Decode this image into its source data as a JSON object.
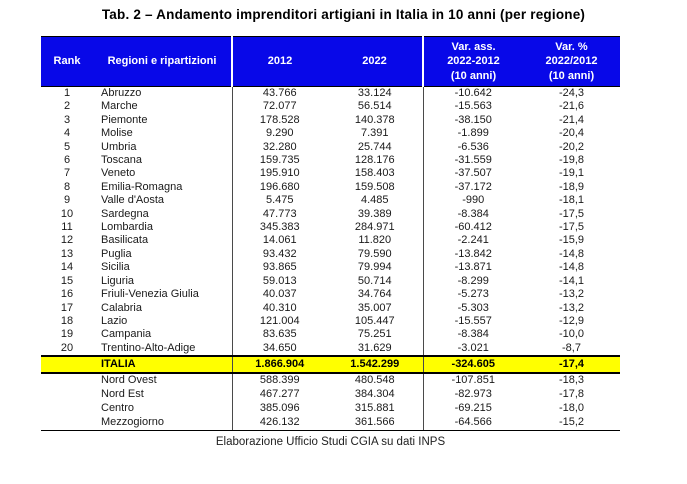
{
  "title": "Tab. 2 – Andamento imprenditori artigiani in Italia in 10 anni (per regione)",
  "footer": "Elaborazione Ufficio Studi CGIA su dati INPS",
  "colors": {
    "header_bg": "#0808e8",
    "header_text": "#ffffff",
    "total_row_bg": "#ffff00"
  },
  "table": {
    "columns": [
      "Rank",
      "Regioni e ripartizioni",
      "2012",
      "2022",
      "Var. ass.\n2022-2012\n(10 anni)",
      "Var. %\n2022/2012\n(10 anni)"
    ],
    "region_rows": [
      [
        "1",
        "Abruzzo",
        "43.766",
        "33.124",
        "-10.642",
        "-24,3"
      ],
      [
        "2",
        "Marche",
        "72.077",
        "56.514",
        "-15.563",
        "-21,6"
      ],
      [
        "3",
        "Piemonte",
        "178.528",
        "140.378",
        "-38.150",
        "-21,4"
      ],
      [
        "4",
        "Molise",
        "9.290",
        "7.391",
        "-1.899",
        "-20,4"
      ],
      [
        "5",
        "Umbria",
        "32.280",
        "25.744",
        "-6.536",
        "-20,2"
      ],
      [
        "6",
        "Toscana",
        "159.735",
        "128.176",
        "-31.559",
        "-19,8"
      ],
      [
        "7",
        "Veneto",
        "195.910",
        "158.403",
        "-37.507",
        "-19,1"
      ],
      [
        "8",
        "Emilia-Romagna",
        "196.680",
        "159.508",
        "-37.172",
        "-18,9"
      ],
      [
        "9",
        "Valle d'Aosta",
        "5.475",
        "4.485",
        "-990",
        "-18,1"
      ],
      [
        "10",
        "Sardegna",
        "47.773",
        "39.389",
        "-8.384",
        "-17,5"
      ],
      [
        "11",
        "Lombardia",
        "345.383",
        "284.971",
        "-60.412",
        "-17,5"
      ],
      [
        "12",
        "Basilicata",
        "14.061",
        "11.820",
        "-2.241",
        "-15,9"
      ],
      [
        "13",
        "Puglia",
        "93.432",
        "79.590",
        "-13.842",
        "-14,8"
      ],
      [
        "14",
        "Sicilia",
        "93.865",
        "79.994",
        "-13.871",
        "-14,8"
      ],
      [
        "15",
        "Liguria",
        "59.013",
        "50.714",
        "-8.299",
        "-14,1"
      ],
      [
        "16",
        "Friuli-Venezia Giulia",
        "40.037",
        "34.764",
        "-5.273",
        "-13,2"
      ],
      [
        "17",
        "Calabria",
        "40.310",
        "35.007",
        "-5.303",
        "-13,2"
      ],
      [
        "18",
        "Lazio",
        "121.004",
        "105.447",
        "-15.557",
        "-12,9"
      ],
      [
        "19",
        "Campania",
        "83.635",
        "75.251",
        "-8.384",
        "-10,0"
      ],
      [
        "20",
        "Trentino-Alto-Adige",
        "34.650",
        "31.629",
        "-3.021",
        "-8,7"
      ]
    ],
    "italy_row": [
      "",
      "ITALIA",
      "1.866.904",
      "1.542.299",
      "-324.605",
      "-17,4"
    ],
    "area_rows": [
      [
        "",
        "Nord Ovest",
        "588.399",
        "480.548",
        "-107.851",
        "-18,3"
      ],
      [
        "",
        "Nord Est",
        "467.277",
        "384.304",
        "-82.973",
        "-17,8"
      ],
      [
        "",
        "Centro",
        "385.096",
        "315.881",
        "-69.215",
        "-18,0"
      ],
      [
        "",
        "Mezzogiorno",
        "426.132",
        "361.566",
        "-64.566",
        "-15,2"
      ]
    ]
  }
}
